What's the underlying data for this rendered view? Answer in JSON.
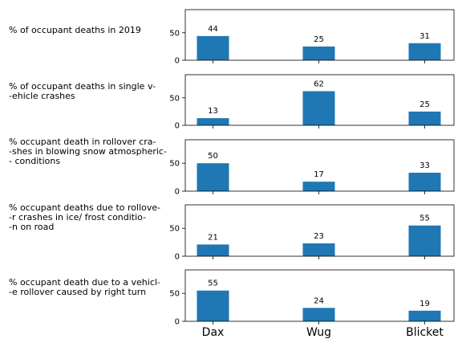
{
  "colors": {
    "bar": "#1f77b4",
    "axis": "#000000",
    "text": "#000000",
    "background": "#ffffff"
  },
  "chart_data": [
    {
      "type": "bar",
      "label": "% of occupant deaths in 2019",
      "categories": [
        "Dax",
        "Wug",
        "Blicket"
      ],
      "values": [
        44,
        25,
        31
      ],
      "ylim": [
        0,
        92
      ],
      "yticks": [
        0,
        50
      ],
      "grid": false
    },
    {
      "type": "bar",
      "label": "% of occupant deaths in single v-\n-ehicle crashes",
      "categories": [
        "Dax",
        "Wug",
        "Blicket"
      ],
      "values": [
        13,
        62,
        25
      ],
      "ylim": [
        0,
        92
      ],
      "yticks": [
        0,
        50
      ],
      "grid": false
    },
    {
      "type": "bar",
      "label": "% occupant death in rollover cra-\n-shes in blowing snow atmospheric-\n- conditions",
      "categories": [
        "Dax",
        "Wug",
        "Blicket"
      ],
      "values": [
        50,
        17,
        33
      ],
      "ylim": [
        0,
        92
      ],
      "yticks": [
        0,
        50
      ],
      "grid": false
    },
    {
      "type": "bar",
      "label": "% occupant deaths due to rollove-\n-r crashes in ice/ frost conditio-\n-n on road",
      "categories": [
        "Dax",
        "Wug",
        "Blicket"
      ],
      "values": [
        21,
        23,
        55
      ],
      "ylim": [
        0,
        92
      ],
      "yticks": [
        0,
        50
      ],
      "grid": false
    },
    {
      "type": "bar",
      "label": "% occupant death due to a vehicl-\n-e rollover caused by right turn",
      "categories": [
        "Dax",
        "Wug",
        "Blicket"
      ],
      "values": [
        55,
        24,
        19
      ],
      "ylim": [
        0,
        92
      ],
      "yticks": [
        0,
        50
      ],
      "grid": false
    }
  ]
}
